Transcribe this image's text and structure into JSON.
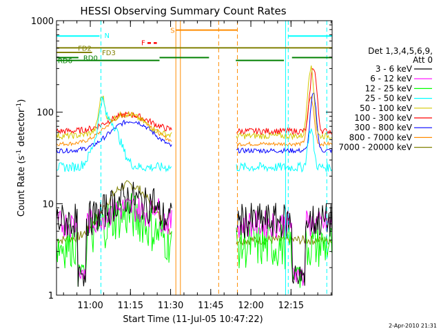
{
  "chart_data": {
    "type": "line",
    "title": "HESSI Observing Summary Count Rates",
    "xlabel": "Start Time (11-Jul-05 10:47:22)",
    "ylabel_main": "Count Rate (s",
    "ylabel_sup1": "-1",
    "ylabel_mid": " detector",
    "ylabel_sup2": "-1",
    "ylabel_end": ")",
    "x_unit": "minutes after 10:47:22",
    "xlim": [
      0,
      103
    ],
    "ylim": [
      1,
      1000
    ],
    "y_scale": "log",
    "x_ticks": [
      {
        "label": "11:00",
        "value": 12.63
      },
      {
        "label": "11:15",
        "value": 27.63
      },
      {
        "label": "11:30",
        "value": 42.63
      },
      {
        "label": "11:45",
        "value": 57.63
      },
      {
        "label": "12:00",
        "value": 72.63
      },
      {
        "label": "12:15",
        "value": 87.63
      }
    ],
    "y_ticks": [
      {
        "label": "1",
        "value": 1
      },
      {
        "label": "10",
        "value": 10
      },
      {
        "label": "100",
        "value": 100
      },
      {
        "label": "1000",
        "value": 1000
      }
    ],
    "legend_header": [
      "Det 1,3,4,5,6,9,",
      "Att 0"
    ],
    "legend_position": "right",
    "series": [
      {
        "name": "3 - 6 keV",
        "color": "#000000"
      },
      {
        "name": "6 - 12 keV",
        "color": "#ff00ff"
      },
      {
        "name": "12 - 25 keV",
        "color": "#00ff00"
      },
      {
        "name": "25 - 50 keV",
        "color": "#00ffff"
      },
      {
        "name": "50 - 100 keV",
        "color": "#d4c800"
      },
      {
        "name": "100 - 300 keV",
        "color": "#ff0000"
      },
      {
        "name": "300 - 800 keV",
        "color": "#0000ff"
      },
      {
        "name": "800 - 7000 keV",
        "color": "#ff8c00"
      },
      {
        "name": "7000 - 20000 keV",
        "color": "#808000"
      }
    ],
    "annotations": [
      {
        "label": "N",
        "color": "#00ffff"
      },
      {
        "label": "F",
        "color": "#ff0000"
      },
      {
        "label": "S",
        "color": "#ff8c00"
      },
      {
        "label": "FD2",
        "color": "#808000"
      },
      {
        "label": "FD3",
        "color": "#808000"
      },
      {
        "label": "RD0",
        "color": "#008000"
      },
      {
        "label": "RD6",
        "color": "#008000"
      }
    ],
    "night_intervals": [
      [
        0,
        16.6
      ],
      [
        86.6,
        103
      ]
    ],
    "saa_interval": [
      44.6,
      67.6
    ],
    "flare_interval": [
      34,
      37.5
    ],
    "data_gaps": [
      [
        43.1,
        67.1
      ]
    ]
  },
  "footer_date": "2-Apr-2010 21:31"
}
